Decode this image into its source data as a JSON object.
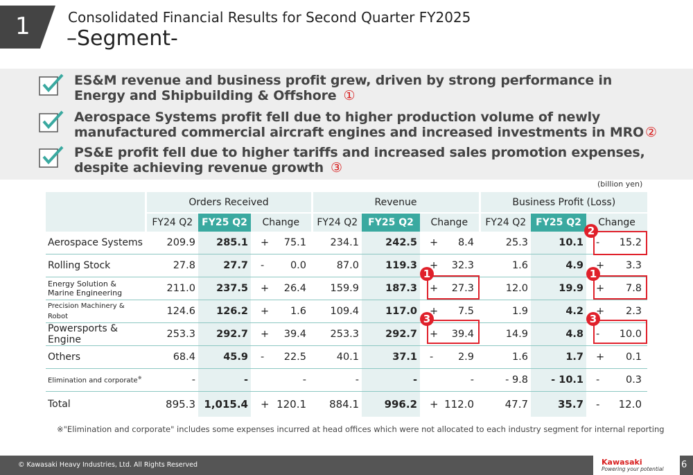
{
  "header": {
    "section_number": "1",
    "title_line1": "Consolidated Financial Results for Second Quarter FY2025",
    "title_line2": "–Segment-"
  },
  "summary": {
    "bullets": [
      {
        "line1": "ES&M revenue and business profit grew, driven by strong performance in",
        "line2": "Energy and Shipbuilding & Offshore",
        "marker": "①"
      },
      {
        "line1": "Aerospace Systems profit fell due to higher production volume of newly",
        "line2": "manufactured commercial aircraft engines and increased investments in MRO",
        "marker": "②"
      },
      {
        "line1": "PS&E profit fell due to higher tariffs and increased sales promotion expenses,",
        "line2": "despite achieving revenue growth",
        "marker": "③"
      }
    ]
  },
  "unit_label": "(billion yen)",
  "table": {
    "groups": [
      "Orders Received",
      "Revenue",
      "Business Profit (Loss)"
    ],
    "subheaders": [
      "FY24 Q2",
      "FY25 Q2",
      "Change"
    ],
    "rows": [
      {
        "name": "Aerospace Systems",
        "o1": "209.9",
        "o2": "285.1",
        "os": "+",
        "ov": "75.1",
        "r1": "234.1",
        "r2": "242.5",
        "rs": "+",
        "rv": "8.4",
        "p1": "25.3",
        "p2": "10.1",
        "ps": "-",
        "pv": "15.2"
      },
      {
        "name": "Rolling Stock",
        "o1": "27.8",
        "o2": "27.7",
        "os": "-",
        "ov": "0.0",
        "r1": "87.0",
        "r2": "119.3",
        "rs": "+",
        "rv": "32.3",
        "p1": "1.6",
        "p2": "4.9",
        "ps": "+",
        "pv": "3.3"
      },
      {
        "name": "Energy Solution & Marine Engineering",
        "o1": "211.0",
        "o2": "237.5",
        "os": "+",
        "ov": "26.4",
        "r1": "159.9",
        "r2": "187.3",
        "rs": "+",
        "rv": "27.3",
        "p1": "12.0",
        "p2": "19.9",
        "ps": "+",
        "pv": "7.8"
      },
      {
        "name": "Precision Machinery & Robot",
        "o1": "124.6",
        "o2": "126.2",
        "os": "+",
        "ov": "1.6",
        "r1": "109.4",
        "r2": "117.0",
        "rs": "+",
        "rv": "7.5",
        "p1": "1.9",
        "p2": "4.2",
        "ps": "+",
        "pv": "2.3"
      },
      {
        "name": "Powersports & Engine",
        "o1": "253.3",
        "o2": "292.7",
        "os": "+",
        "ov": "39.4",
        "r1": "253.3",
        "r2": "292.7",
        "rs": "+",
        "rv": "39.4",
        "p1": "14.9",
        "p2": "4.8",
        "ps": "-",
        "pv": "10.0"
      },
      {
        "name": "Others",
        "o1": "68.4",
        "o2": "45.9",
        "os": "-",
        "ov": "22.5",
        "r1": "40.1",
        "r2": "37.1",
        "rs": "-",
        "rv": "2.9",
        "p1": "1.6",
        "p2": "1.7",
        "ps": "+",
        "pv": "0.1"
      },
      {
        "name": "Elimination and corporate",
        "name_mark": "※",
        "o1": "-",
        "o2": "-",
        "os": "",
        "ov": "-",
        "r1": "-",
        "r2": "-",
        "rs": "",
        "rv": "-",
        "p1": "- 9.8",
        "p2": "- 10.1",
        "ps": "-",
        "pv": "0.3"
      },
      {
        "name": "Total",
        "o1": "895.3",
        "o2": "1,015.4",
        "os": "+",
        "ov": "120.1",
        "r1": "884.1",
        "r2": "996.2",
        "rs": "+",
        "rv": "112.0",
        "p1": "47.7",
        "p2": "35.7",
        "ps": "-",
        "pv": "12.0"
      }
    ],
    "callouts": [
      "1",
      "2",
      "3"
    ]
  },
  "footnote": "※\"Elimination and corporate\" includes some expenses incurred at head offices which were not allocated to each industry segment for internal reporting",
  "footer": {
    "copyright": "© Kawasaki Heavy Industries, Ltd. All Rights Reserved",
    "logo_name": "Kawasaki",
    "logo_tagline": "Powering your potential",
    "page_number": "6"
  },
  "colors": {
    "accent": "#3aa9a0",
    "header_bg": "#e6f1f1",
    "callout_red": "#e0202a",
    "footer_bg": "#555555"
  }
}
